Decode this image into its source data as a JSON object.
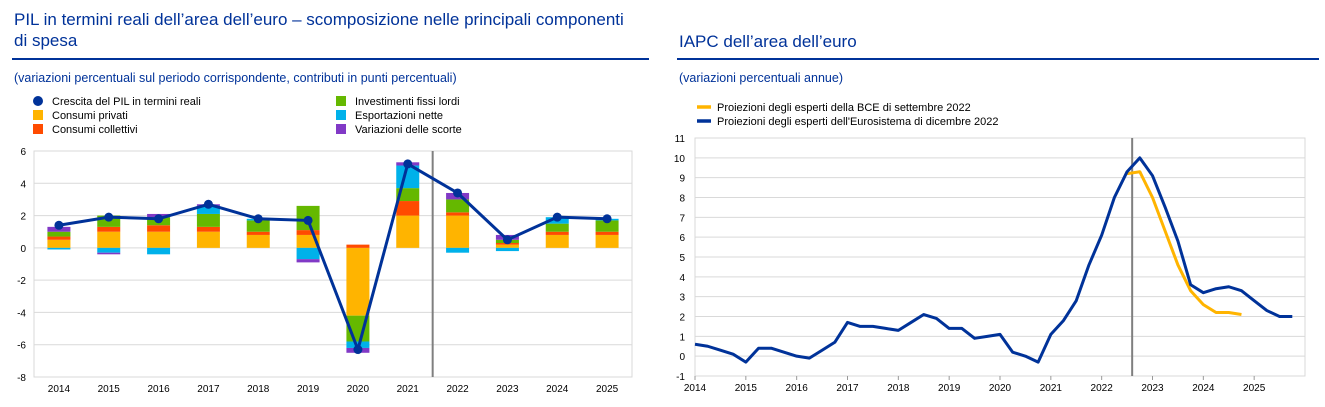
{
  "colors": {
    "gdp": "#003299",
    "private": "#FFB400",
    "public": "#FF4B00",
    "investment": "#65B800",
    "net_exports": "#00B1EA",
    "inventories": "#8139C6",
    "bce": "#FFB400",
    "eurosystem": "#003299"
  },
  "left": {
    "title": "PIL in termini reali dell’area dell’euro – scomposizione nelle principali componenti di spesa",
    "subtitle": "(variazioni percentuali sul periodo corrispondente, contributi in punti percentuali)"
  },
  "right": {
    "title": "IAPC dell’area dell’euro",
    "subtitle": "(variazioni percentuali annue)"
  },
  "chart_data": [
    {
      "type": "bar",
      "stacked": true,
      "categories": [
        "2014",
        "2015",
        "2016",
        "2017",
        "2018",
        "2019",
        "2020",
        "2021",
        "2022",
        "2023",
        "2024",
        "2025"
      ],
      "ylim": [
        -8,
        6
      ],
      "yticks": [
        -8,
        -6,
        -4,
        -2,
        0,
        2,
        4,
        6
      ],
      "grid": true,
      "legend_position": "top",
      "projection_line_after": "2021",
      "series": [
        {
          "name": "Consumi privati",
          "color_key": "private",
          "values": [
            0.5,
            1.0,
            1.0,
            1.0,
            0.8,
            0.8,
            -4.2,
            2.0,
            2.0,
            0.2,
            0.8,
            0.8
          ]
        },
        {
          "name": "Consumi collettivi",
          "color_key": "public",
          "values": [
            0.2,
            0.3,
            0.4,
            0.3,
            0.2,
            0.3,
            0.2,
            0.9,
            0.2,
            0.1,
            0.2,
            0.2
          ]
        },
        {
          "name": "Investimenti fissi lordi",
          "color_key": "investment",
          "values": [
            0.3,
            0.7,
            0.5,
            0.8,
            0.7,
            1.5,
            -1.6,
            0.8,
            0.8,
            0.2,
            0.5,
            0.7
          ]
        },
        {
          "name": "Esportazioni nette",
          "color_key": "net_exports",
          "values": [
            -0.1,
            -0.3,
            -0.4,
            0.5,
            0.1,
            -0.7,
            -0.4,
            1.4,
            -0.3,
            -0.2,
            0.4,
            0.1
          ]
        },
        {
          "name": "Variazioni delle scorte",
          "color_key": "inventories",
          "values": [
            0.3,
            -0.1,
            0.2,
            0.1,
            0.0,
            -0.2,
            -0.3,
            0.2,
            0.4,
            0.3,
            0.0,
            0.0
          ]
        }
      ],
      "line": {
        "name": "Crescita del PIL in termini reali",
        "color_key": "gdp",
        "values": [
          1.4,
          1.9,
          1.8,
          2.7,
          1.8,
          1.7,
          -6.3,
          5.2,
          3.4,
          0.5,
          1.9,
          1.8
        ]
      }
    },
    {
      "type": "line",
      "x_ticks": [
        "2014",
        "2015",
        "2016",
        "2017",
        "2018",
        "2019",
        "2020",
        "2021",
        "2022",
        "2023",
        "2024",
        "2025"
      ],
      "xlim": [
        2014,
        2026
      ],
      "ylim": [
        -1,
        11
      ],
      "yticks": [
        -1,
        0,
        1,
        2,
        3,
        4,
        5,
        6,
        7,
        8,
        9,
        10,
        11
      ],
      "grid": true,
      "legend_position": "top-left",
      "projection_line_at": 2022.6,
      "series": [
        {
          "name": "Proiezioni degli esperti della BCE di settembre 2022",
          "color_key": "bce",
          "x": [
            2022.5,
            2022.75,
            2023.0,
            2023.25,
            2023.5,
            2023.75,
            2024.0,
            2024.25,
            2024.5,
            2024.75
          ],
          "y": [
            9.2,
            9.3,
            8.0,
            6.3,
            4.6,
            3.3,
            2.6,
            2.2,
            2.2,
            2.1
          ]
        },
        {
          "name": "Proiezioni degli esperti dell'Eurosistema di dicembre 2022",
          "color_key": "eurosystem",
          "x": [
            2014.0,
            2014.25,
            2014.5,
            2014.75,
            2015.0,
            2015.25,
            2015.5,
            2015.75,
            2016.0,
            2016.25,
            2016.5,
            2016.75,
            2017.0,
            2017.25,
            2017.5,
            2017.75,
            2018.0,
            2018.25,
            2018.5,
            2018.75,
            2019.0,
            2019.25,
            2019.5,
            2019.75,
            2020.0,
            2020.25,
            2020.5,
            2020.75,
            2021.0,
            2021.25,
            2021.5,
            2021.75,
            2022.0,
            2022.25,
            2022.5,
            2022.75,
            2023.0,
            2023.25,
            2023.5,
            2023.75,
            2024.0,
            2024.25,
            2024.5,
            2024.75,
            2025.0,
            2025.25,
            2025.5,
            2025.75
          ],
          "y": [
            0.6,
            0.5,
            0.3,
            0.1,
            -0.3,
            0.4,
            0.4,
            0.2,
            0.0,
            -0.1,
            0.3,
            0.7,
            1.7,
            1.5,
            1.5,
            1.4,
            1.3,
            1.7,
            2.1,
            1.9,
            1.4,
            1.4,
            0.9,
            1.0,
            1.1,
            0.2,
            0.0,
            -0.3,
            1.1,
            1.8,
            2.8,
            4.6,
            6.1,
            8.0,
            9.3,
            10.0,
            9.1,
            7.5,
            5.8,
            3.6,
            3.2,
            3.4,
            3.5,
            3.3,
            2.8,
            2.3,
            2.0,
            2.0
          ]
        }
      ]
    }
  ]
}
